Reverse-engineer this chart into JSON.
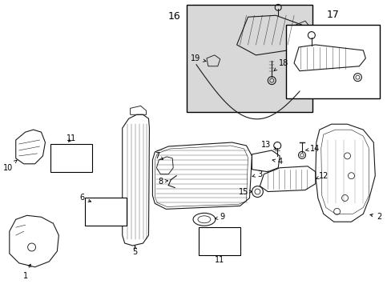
{
  "background_color": "#ffffff",
  "line_color": "#1a1a1a",
  "figsize": [
    4.89,
    3.6
  ],
  "dpi": 100,
  "label_fontsize": 7,
  "inset_bg": "#d8d8d8",
  "inset_border": "#000000"
}
